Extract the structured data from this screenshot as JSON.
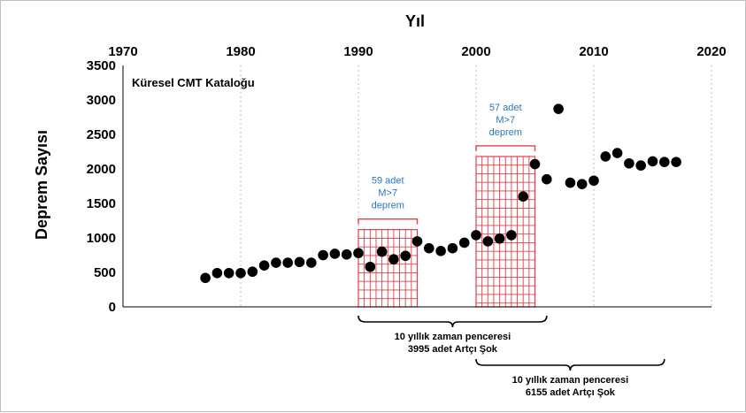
{
  "chart_data": {
    "type": "scatter",
    "title": "",
    "xlabel": "Yıl",
    "ylabel": "Deprem Sayısı",
    "catalog_label": "Küresel CMT Kataloğu",
    "xlim": [
      1970,
      2020
    ],
    "ylim": [
      0,
      3500
    ],
    "x_ticks": [
      "1970",
      "1980",
      "1990",
      "2000",
      "2010",
      "2020"
    ],
    "y_ticks": [
      "0",
      "500",
      "1000",
      "1500",
      "2000",
      "2500",
      "3000",
      "3500"
    ],
    "grid": "vertical dotted",
    "x_axis_position": "top",
    "point_color": "#000000",
    "highlight_color": "#e0404a",
    "series": [
      {
        "x": [
          1977,
          1978,
          1979,
          1980,
          1981,
          1982,
          1983,
          1984,
          1985,
          1986,
          1987,
          1988,
          1989,
          1990,
          1991,
          1992,
          1993,
          1994,
          1995,
          1996,
          1997,
          1998,
          1999,
          2000,
          2001,
          2002,
          2003,
          2004,
          2005,
          2006,
          2007,
          2008,
          2009,
          2010,
          2011,
          2012,
          2013,
          2014,
          2015,
          2016,
          2017
        ],
        "y": [
          420,
          490,
          490,
          490,
          510,
          600,
          640,
          640,
          650,
          640,
          750,
          770,
          760,
          780,
          580,
          800,
          690,
          740,
          950,
          850,
          810,
          850,
          930,
          1040,
          950,
          990,
          1040,
          1600,
          2070,
          1850,
          2870,
          1800,
          1780,
          1830,
          2180,
          2230,
          2080,
          2050,
          2110,
          2100,
          2100
        ]
      }
    ],
    "highlight_boxes": [
      {
        "x_start": 1990,
        "x_end": 1995,
        "y_top": 1120,
        "count": "59 adet",
        "mag": "M>7",
        "unit": "deprem"
      },
      {
        "x_start": 2000,
        "x_end": 2005,
        "y_top": 2180,
        "count": "57 adet",
        "mag": "M>7",
        "unit": "deprem"
      }
    ],
    "time_windows": [
      {
        "x_start": 1990,
        "x_end": 2006,
        "line1": "10 yıllık zaman penceresi",
        "line2": "3995 adet Artçı Şok"
      },
      {
        "x_start": 2000,
        "x_end": 2016,
        "line1": "10 yıllık zaman penceresi",
        "line2": "6155 adet Artçı Şok"
      }
    ]
  }
}
